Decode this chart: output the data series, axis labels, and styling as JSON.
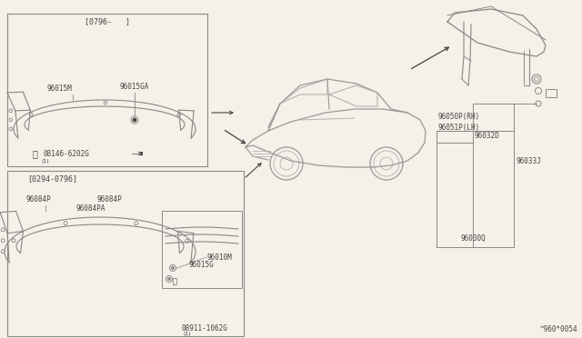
{
  "bg_color": "#f5f0e8",
  "line_color": "#888888",
  "text_color": "#777777",
  "dark_color": "#444444",
  "fig_width": 6.4,
  "fig_height": 3.72,
  "diagram_id": "^960*0054",
  "top_box_label": "[0796-   ]",
  "bottom_box_label": "[0294-0796]",
  "parts_top": [
    "96015M",
    "96015GA",
    "08146-6202G"
  ],
  "parts_bottom": [
    "96084P",
    "96084P",
    "96084PA",
    "96015G",
    "96010M",
    "08911-1062G"
  ],
  "parts_right": [
    "96050P(RH)",
    "96051P(LH)",
    "96032D",
    "96033J",
    "96030Q"
  ]
}
